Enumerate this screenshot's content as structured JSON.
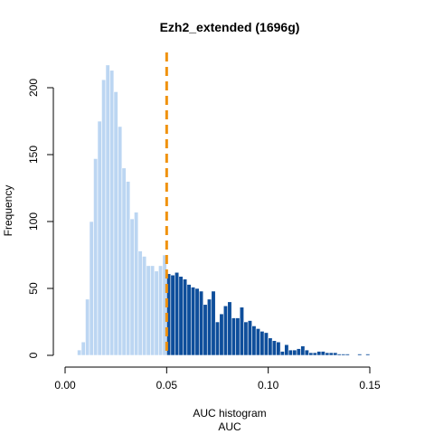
{
  "chart_data": {
    "type": "bar",
    "title": "Ezh2_extended (1696g)",
    "xlabel_line1": "AUC histogram",
    "xlabel_line2": "AUC",
    "ylabel": "Frequency",
    "xlim": [
      0,
      0.165
    ],
    "ylim": [
      0,
      220
    ],
    "x_ticks": [
      0.0,
      0.05,
      0.1,
      0.15
    ],
    "x_tick_labels": [
      "0.00",
      "0.05",
      "0.10",
      "0.15"
    ],
    "y_ticks": [
      0,
      50,
      100,
      150,
      200
    ],
    "y_tick_labels": [
      "0",
      "50",
      "100",
      "150",
      "200"
    ],
    "bin_width": 0.002,
    "bin_start": 0.004,
    "threshold": 0.05,
    "values": [
      0,
      4,
      10,
      42,
      100,
      147,
      175,
      206,
      217,
      213,
      197,
      171,
      140,
      130,
      102,
      107,
      78,
      74,
      67,
      67,
      63,
      67,
      75,
      61,
      60,
      62,
      59,
      57,
      53,
      51,
      50,
      48,
      38,
      42,
      48,
      25,
      31,
      37,
      40,
      28,
      28,
      36,
      25,
      26,
      22,
      20,
      18,
      17,
      13,
      11,
      10,
      3,
      8,
      4,
      4,
      5,
      7,
      4,
      2,
      2,
      3,
      3,
      2,
      2,
      2,
      1,
      1,
      1,
      0,
      0,
      1,
      0,
      1
    ],
    "colors": {
      "below_threshold": "#bcd6f2",
      "above_threshold": "#0e4e9b",
      "threshold_line": "#f0920e",
      "bar_border": "#ffffff"
    }
  }
}
